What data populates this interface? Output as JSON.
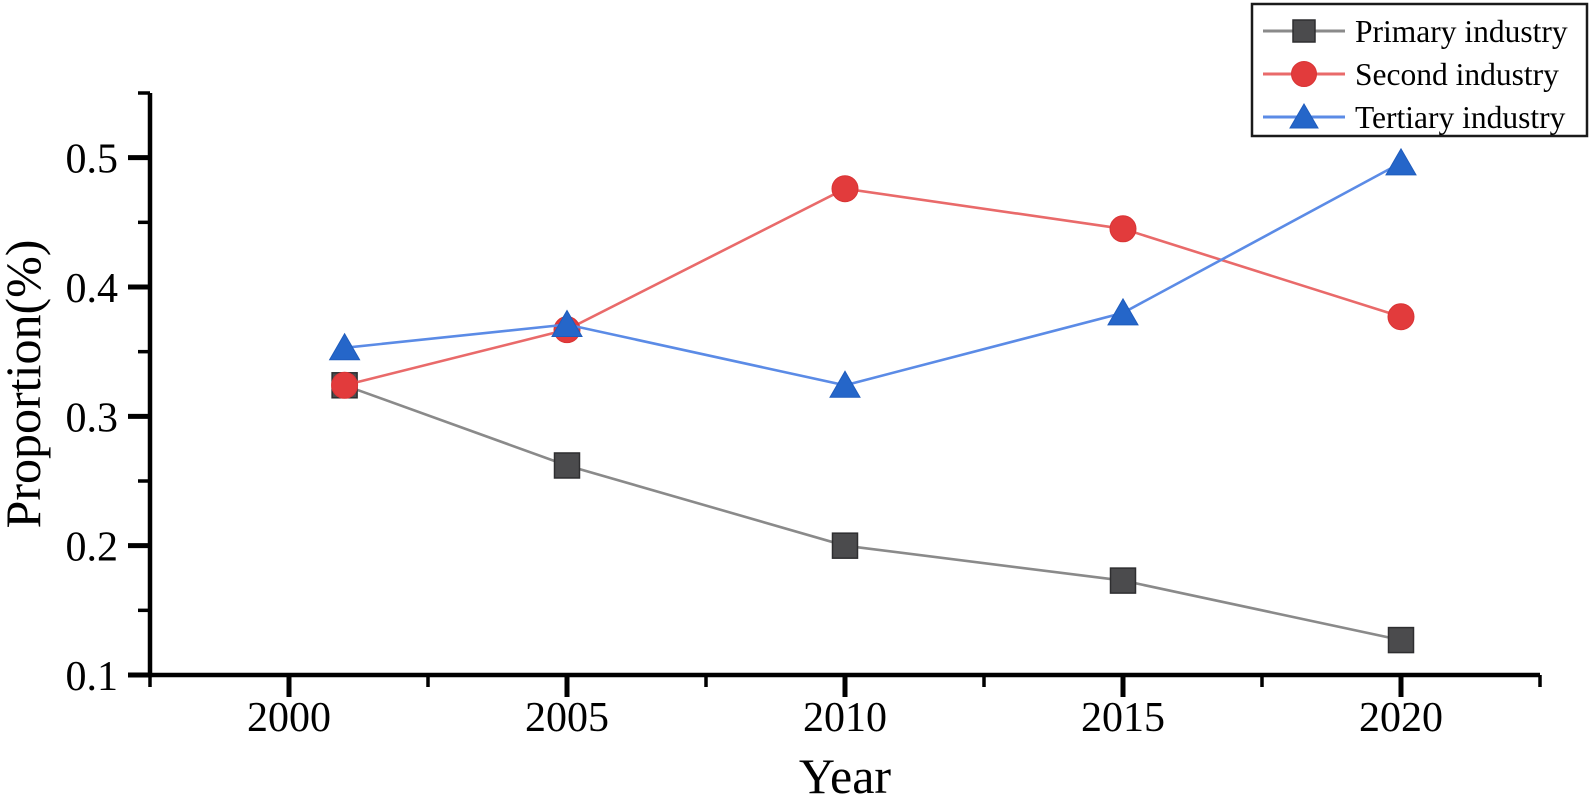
{
  "figure": {
    "background": "#ffffff",
    "axis_color": "#000000"
  },
  "chart_data": {
    "type": "line",
    "title": "",
    "xlabel": "Year",
    "ylabel": "Proportion(%)",
    "x": [
      2001,
      2005,
      2010,
      2015,
      2020
    ],
    "series": [
      {
        "name": "Primary industry",
        "marker": "square",
        "marker_color": "#4b4b4d",
        "marker_edge": "#2e2e30",
        "line_color": "#8a8a8a",
        "values": [
          0.324,
          0.262,
          0.2,
          0.173,
          0.127
        ]
      },
      {
        "name": "Second industry",
        "marker": "circle",
        "marker_color": "#e23b3c",
        "marker_edge": "#d93435",
        "line_color": "#e96a6a",
        "values": [
          0.324,
          0.367,
          0.476,
          0.445,
          0.377
        ]
      },
      {
        "name": "Tertiary industry",
        "marker": "triangle",
        "marker_color": "#2566c9",
        "marker_edge": "#1f5cbd",
        "line_color": "#5b8be6",
        "values": [
          0.353,
          0.371,
          0.324,
          0.38,
          0.496
        ]
      }
    ],
    "xlim": [
      1997.5,
      2022.5
    ],
    "ylim": [
      0.1,
      0.55
    ],
    "x_major_ticks": [
      2000,
      2005,
      2010,
      2015,
      2020
    ],
    "x_minor_step": 2.5,
    "y_major_ticks": [
      0.1,
      0.2,
      0.3,
      0.4,
      0.5
    ],
    "y_minor_step": 0.05,
    "y_tick_decimals": 1,
    "grid": false,
    "legend_position": "top-right"
  }
}
